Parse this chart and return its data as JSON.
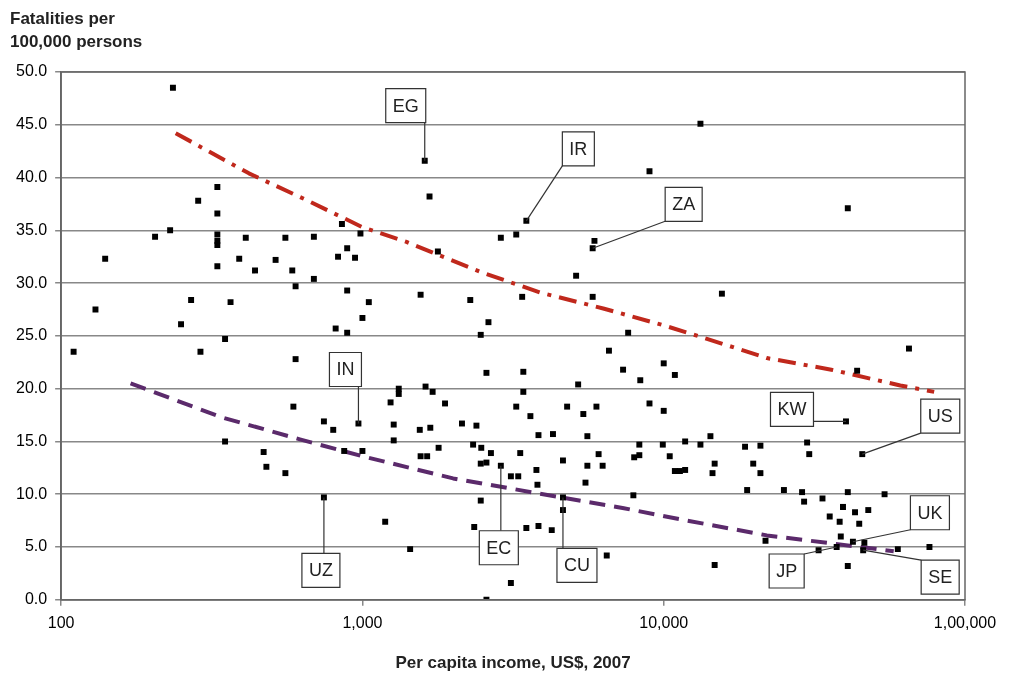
{
  "chart_data": {
    "type": "scatter",
    "xlabel": "Per capita income, US$, 2007",
    "ylabel": "Fatalities per 100,000 persons",
    "log": "x",
    "grid": "y",
    "legend": false,
    "xlim": [
      100,
      100000
    ],
    "xticks": [
      100,
      {
        "value": 1000,
        "label": "1,000"
      },
      {
        "value": 10000,
        "label": "10,000"
      },
      {
        "value": 100000,
        "label": "1,00,000"
      }
    ],
    "ylim": [
      0,
      50
    ],
    "yticks": [
      {
        "value": 0,
        "label": "0.0"
      },
      {
        "value": 5,
        "label": "5.0"
      },
      {
        "value": 10,
        "label": "10.0"
      },
      {
        "value": 15,
        "label": "15.0"
      },
      {
        "value": 20,
        "label": "20.0"
      },
      {
        "value": 25,
        "label": "25.0"
      },
      {
        "value": 30,
        "label": "30.0"
      },
      {
        "value": 35,
        "label": "35.0"
      },
      {
        "value": 40,
        "label": "40.0"
      },
      {
        "value": 45,
        "label": "45.0"
      },
      {
        "value": 50,
        "label": "50.0"
      }
    ],
    "series": [
      {
        "color": "#000000",
        "marker": "square",
        "x": [
          235,
          140,
          130,
          205,
          230,
          285,
          330,
          330,
          330,
          330,
          330,
          330,
          390,
          440,
          410,
          515,
          555,
          585,
          600,
          690,
          690,
          855,
          830,
          890,
          945,
          985,
          890,
          1050,
          1000,
          815,
          890,
          270,
          250,
          365,
          350,
          110,
          290,
          600,
          590,
          745,
          800,
          970,
          870,
          1000,
          350,
          470,
          480,
          555,
          745,
          1610,
          1670,
          1780,
          2880,
          3240,
          3500,
          8970,
          5890,
          5810,
          5120,
          1560,
          2280,
          3390,
          5810,
          2620,
          2470,
          7620,
          13240,
          40830,
          15600,
          6580,
          2580,
          3420,
          7330,
          10000,
          8360,
          10890,
          5200,
          1320,
          1320,
          1240,
          1620,
          1710,
          1880,
          3420,
          3240,
          3610,
          4780,
          5410,
          5980,
          8970,
          10000,
          1270,
          1270,
          1550,
          1680,
          1790,
          1560,
          1640,
          2140,
          2390,
          2330,
          2480,
          2670,
          2470,
          2580,
          2880,
          3110,
          3290,
          3340,
          3840,
          4290,
          3780,
          3810,
          5580,
          6080,
          6270,
          5580,
          4630,
          5500,
          4630,
          4630,
          8300,
          8300,
          7980,
          9930,
          10470,
          10890,
          7930,
          2470,
          2350,
          1190,
          1440,
          3500,
          3840,
          4250,
          3110,
          2580,
          6470,
          65170,
          43850,
          40270,
          45600,
          11780,
          13240,
          14290,
          11320,
          11780,
          14760,
          14520,
          18620,
          20940,
          19820,
          20940,
          29920,
          30410,
          18920,
          25060,
          28790,
          29240,
          33650,
          40830,
          54080,
          39360,
          43150,
          47750,
          35560,
          38370,
          44560,
          38700,
          21770,
          32660,
          37500,
          42460,
          45920,
          46340,
          59840,
          76210,
          14760,
          40830
        ],
        "values": [
          48.5,
          32.3,
          27.5,
          34.4,
          35.0,
          37.8,
          39.1,
          36.6,
          34.6,
          34.0,
          33.6,
          31.6,
          32.3,
          31.2,
          34.3,
          32.2,
          34.3,
          31.2,
          29.7,
          34.4,
          30.4,
          35.6,
          32.5,
          33.3,
          32.4,
          34.7,
          29.3,
          28.2,
          26.7,
          25.7,
          25.3,
          28.4,
          26.1,
          28.2,
          24.7,
          23.5,
          23.5,
          22.8,
          18.3,
          16.9,
          16.1,
          16.7,
          14.1,
          14.1,
          15.0,
          14.0,
          12.6,
          12.0,
          9.7,
          41.6,
          38.2,
          33.0,
          34.3,
          34.6,
          35.9,
          40.6,
          34.0,
          33.3,
          30.7,
          28.9,
          28.4,
          28.7,
          28.7,
          26.3,
          25.1,
          25.3,
          45.1,
          37.1,
          29.0,
          23.6,
          21.5,
          21.6,
          21.8,
          22.4,
          20.8,
          21.3,
          20.4,
          20.0,
          19.5,
          18.7,
          20.2,
          19.7,
          18.6,
          19.7,
          18.3,
          17.4,
          18.3,
          17.6,
          18.3,
          18.6,
          17.9,
          16.6,
          15.1,
          16.1,
          16.3,
          14.4,
          13.6,
          13.6,
          16.7,
          16.5,
          14.7,
          14.4,
          13.9,
          12.9,
          13.0,
          12.7,
          11.7,
          11.7,
          13.9,
          15.6,
          15.7,
          12.3,
          10.9,
          15.5,
          13.8,
          12.7,
          12.7,
          13.2,
          11.1,
          9.7,
          8.5,
          14.7,
          13.7,
          13.5,
          14.7,
          13.6,
          12.2,
          9.9,
          9.4,
          6.9,
          7.4,
          4.8,
          6.8,
          7.0,
          6.6,
          1.6,
          0.0,
          4.2,
          23.8,
          21.7,
          16.9,
          13.8,
          15.0,
          14.7,
          15.5,
          12.2,
          12.3,
          12.9,
          12.0,
          14.5,
          14.6,
          12.9,
          12.0,
          14.9,
          13.8,
          10.4,
          10.4,
          10.2,
          9.3,
          9.6,
          10.2,
          10.0,
          8.8,
          8.3,
          8.5,
          7.9,
          7.4,
          7.2,
          6.0,
          5.6,
          4.7,
          5.0,
          5.5,
          4.7,
          5.4,
          4.8,
          5.0,
          3.3,
          3.2
        ]
      },
      {
        "type": "line",
        "color": "#c0281c",
        "line_style": "dashdot",
        "x": [
          240,
          420,
          660,
          1000,
          1400,
          2500,
          3900,
          6300,
          10000,
          14000,
          22000,
          36000,
          61000,
          79000
        ],
        "values": [
          44.2,
          40.4,
          37.8,
          35.3,
          33.9,
          31.0,
          29.1,
          27.6,
          26.0,
          24.7,
          22.9,
          21.8,
          20.3,
          19.7
        ]
      },
      {
        "type": "line",
        "color": "#5b2a6b",
        "line_style": "dashed",
        "x": [
          170,
          340,
          620,
          1000,
          2000,
          3800,
          7300,
          11000,
          22000,
          45000,
          58000
        ],
        "values": [
          20.5,
          17.3,
          15.2,
          13.6,
          11.5,
          10.1,
          8.7,
          7.7,
          6.1,
          5.0,
          4.6
        ]
      }
    ],
    "annotations": [
      {
        "text": "EG",
        "x": 1610,
        "y": 41.6
      },
      {
        "text": "IR",
        "x": 3500,
        "y": 35.9
      },
      {
        "text": "ZA",
        "x": 5810,
        "y": 33.3
      },
      {
        "text": "IN",
        "x": 970,
        "y": 16.7
      },
      {
        "text": "UZ",
        "x": 745,
        "y": 9.7
      },
      {
        "text": "EC",
        "x": 2880,
        "y": 12.7
      },
      {
        "text": "CU",
        "x": 4630,
        "y": 9.7
      },
      {
        "text": "KW",
        "x": 40270,
        "y": 16.9
      },
      {
        "text": "US",
        "x": 45600,
        "y": 13.8
      },
      {
        "text": "UK",
        "x": 42460,
        "y": 5.5
      },
      {
        "text": "JP",
        "x": 37500,
        "y": 5.0
      },
      {
        "text": "SE",
        "x": 45920,
        "y": 4.7
      }
    ]
  }
}
